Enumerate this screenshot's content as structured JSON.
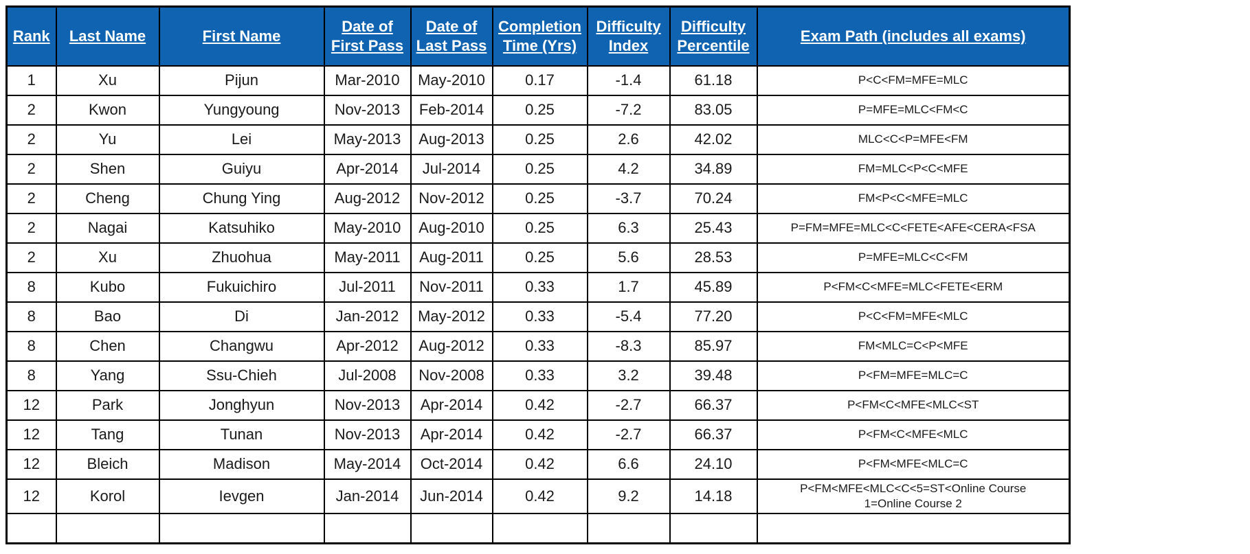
{
  "colors": {
    "header_bg": "#1063b1",
    "header_text": "#ffffff",
    "border": "#000000",
    "cell_text": "#1a1a1a"
  },
  "table": {
    "columns": [
      {
        "id": "rank",
        "label": "Rank"
      },
      {
        "id": "last-name",
        "label": "Last Name"
      },
      {
        "id": "first-name",
        "label": "First Name"
      },
      {
        "id": "date-of-first-pass",
        "label": "Date of\nFirst Pass"
      },
      {
        "id": "date-of-last-pass",
        "label": "Date of\nLast Pass"
      },
      {
        "id": "completion-time-yrs",
        "label": "Completion\nTime (Yrs)"
      },
      {
        "id": "difficulty-index",
        "label": "Difficulty\nIndex"
      },
      {
        "id": "difficulty-percentile",
        "label": "Difficulty\nPercentile"
      },
      {
        "id": "exam-path",
        "label": "Exam Path (includes all exams)"
      }
    ],
    "rows": [
      [
        "1",
        "Xu",
        "Pijun",
        "Mar-2010",
        "May-2010",
        "0.17",
        "-1.4",
        "61.18",
        "P<C<FM=MFE=MLC"
      ],
      [
        "2",
        "Kwon",
        "Yungyoung",
        "Nov-2013",
        "Feb-2014",
        "0.25",
        "-7.2",
        "83.05",
        "P=MFE=MLC<FM<C"
      ],
      [
        "2",
        "Yu",
        "Lei",
        "May-2013",
        "Aug-2013",
        "0.25",
        "2.6",
        "42.02",
        "MLC<C<P=MFE<FM"
      ],
      [
        "2",
        "Shen",
        "Guiyu",
        "Apr-2014",
        "Jul-2014",
        "0.25",
        "4.2",
        "34.89",
        "FM=MLC<P<C<MFE"
      ],
      [
        "2",
        "Cheng",
        "Chung Ying",
        "Aug-2012",
        "Nov-2012",
        "0.25",
        "-3.7",
        "70.24",
        "FM<P<C<MFE=MLC"
      ],
      [
        "2",
        "Nagai",
        "Katsuhiko",
        "May-2010",
        "Aug-2010",
        "0.25",
        "6.3",
        "25.43",
        "P=FM=MFE=MLC<C<FETE<AFE<CERA<FSA"
      ],
      [
        "2",
        "Xu",
        "Zhuohua",
        "May-2011",
        "Aug-2011",
        "0.25",
        "5.6",
        "28.53",
        "P=MFE=MLC<C<FM"
      ],
      [
        "8",
        "Kubo",
        "Fukuichiro",
        "Jul-2011",
        "Nov-2011",
        "0.33",
        "1.7",
        "45.89",
        "P<FM<C<MFE=MLC<FETE<ERM"
      ],
      [
        "8",
        "Bao",
        "Di",
        "Jan-2012",
        "May-2012",
        "0.33",
        "-5.4",
        "77.20",
        "P<C<FM=MFE<MLC"
      ],
      [
        "8",
        "Chen",
        "Changwu",
        "Apr-2012",
        "Aug-2012",
        "0.33",
        "-8.3",
        "85.97",
        "FM<MLC=C<P<MFE"
      ],
      [
        "8",
        "Yang",
        "Ssu-Chieh",
        "Jul-2008",
        "Nov-2008",
        "0.33",
        "3.2",
        "39.48",
        "P<FM=MFE=MLC=C"
      ],
      [
        "12",
        "Park",
        "Jonghyun",
        "Nov-2013",
        "Apr-2014",
        "0.42",
        "-2.7",
        "66.37",
        "P<FM<C<MFE<MLC<ST"
      ],
      [
        "12",
        "Tang",
        "Tunan",
        "Nov-2013",
        "Apr-2014",
        "0.42",
        "-2.7",
        "66.37",
        "P<FM<C<MFE<MLC"
      ],
      [
        "12",
        "Bleich",
        "Madison",
        "May-2014",
        "Oct-2014",
        "0.42",
        "6.6",
        "24.10",
        "P<FM<MFE<MLC=C"
      ],
      [
        "12",
        "Korol",
        "Ievgen",
        "Jan-2014",
        "Jun-2014",
        "0.42",
        "9.2",
        "14.18",
        "P<FM<MFE<MLC<C<5=ST<Online Course\n1=Online Course 2"
      ]
    ]
  }
}
